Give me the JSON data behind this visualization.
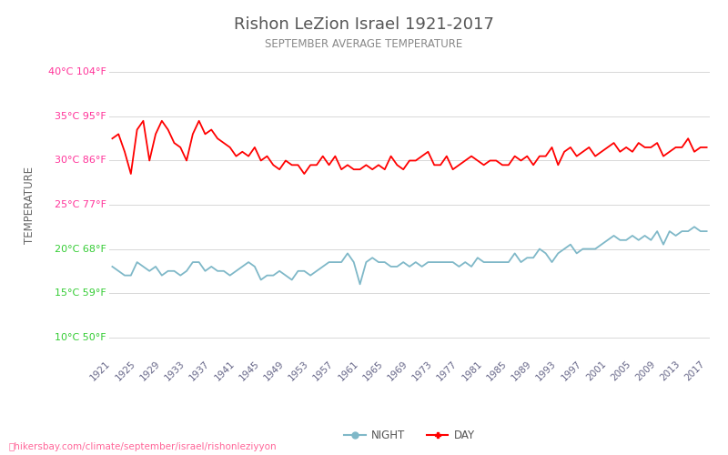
{
  "title": "Rishon LeZion Israel 1921-2017",
  "subtitle": "SEPTEMBER AVERAGE TEMPERATURE",
  "ylabel": "TEMPERATURE",
  "xlabel_url": "hikersbay.com/climate/september/israel/rishonleziyyon",
  "years": [
    1921,
    1922,
    1923,
    1924,
    1925,
    1926,
    1927,
    1928,
    1929,
    1930,
    1931,
    1932,
    1933,
    1934,
    1935,
    1936,
    1937,
    1938,
    1939,
    1940,
    1941,
    1942,
    1943,
    1944,
    1945,
    1946,
    1947,
    1948,
    1949,
    1950,
    1951,
    1952,
    1953,
    1954,
    1955,
    1956,
    1957,
    1958,
    1959,
    1960,
    1961,
    1962,
    1963,
    1964,
    1965,
    1966,
    1967,
    1968,
    1969,
    1970,
    1971,
    1972,
    1973,
    1974,
    1975,
    1976,
    1977,
    1978,
    1979,
    1980,
    1981,
    1982,
    1983,
    1984,
    1985,
    1986,
    1987,
    1988,
    1989,
    1990,
    1991,
    1992,
    1993,
    1994,
    1995,
    1996,
    1997,
    1998,
    1999,
    2000,
    2001,
    2002,
    2003,
    2004,
    2005,
    2006,
    2007,
    2008,
    2009,
    2010,
    2011,
    2012,
    2013,
    2014,
    2015,
    2016,
    2017
  ],
  "day_temps": [
    32.5,
    33.0,
    31.0,
    28.5,
    33.5,
    34.5,
    30.0,
    33.0,
    34.5,
    33.5,
    32.0,
    31.5,
    30.0,
    33.0,
    34.5,
    33.0,
    33.5,
    32.5,
    32.0,
    31.5,
    30.5,
    31.0,
    30.5,
    31.5,
    30.0,
    30.5,
    29.5,
    29.0,
    30.0,
    29.5,
    29.5,
    28.5,
    29.5,
    29.5,
    30.5,
    29.5,
    30.5,
    29.0,
    29.5,
    29.0,
    29.0,
    29.5,
    29.0,
    29.5,
    29.0,
    30.5,
    29.5,
    29.0,
    30.0,
    30.0,
    30.5,
    31.0,
    29.5,
    29.5,
    30.5,
    29.0,
    29.5,
    30.0,
    30.5,
    30.0,
    29.5,
    30.0,
    30.0,
    29.5,
    29.5,
    30.5,
    30.0,
    30.5,
    29.5,
    30.5,
    30.5,
    31.5,
    29.5,
    31.0,
    31.5,
    30.5,
    31.0,
    31.5,
    30.5,
    31.0,
    31.5,
    32.0,
    31.0,
    31.5,
    31.0,
    32.0,
    31.5,
    31.5,
    32.0,
    30.5,
    31.0,
    31.5,
    31.5,
    32.5,
    31.0,
    31.5,
    31.5
  ],
  "night_temps": [
    18.0,
    17.5,
    17.0,
    17.0,
    18.5,
    18.0,
    17.5,
    18.0,
    17.0,
    17.5,
    17.5,
    17.0,
    17.5,
    18.5,
    18.5,
    17.5,
    18.0,
    17.5,
    17.5,
    17.0,
    17.5,
    18.0,
    18.5,
    18.0,
    16.5,
    17.0,
    17.0,
    17.5,
    17.0,
    16.5,
    17.5,
    17.5,
    17.0,
    17.5,
    18.0,
    18.5,
    18.5,
    18.5,
    19.5,
    18.5,
    16.0,
    18.5,
    19.0,
    18.5,
    18.5,
    18.0,
    18.0,
    18.5,
    18.0,
    18.5,
    18.0,
    18.5,
    18.5,
    18.5,
    18.5,
    18.5,
    18.0,
    18.5,
    18.0,
    19.0,
    18.5,
    18.5,
    18.5,
    18.5,
    18.5,
    19.5,
    18.5,
    19.0,
    19.0,
    20.0,
    19.5,
    18.5,
    19.5,
    20.0,
    20.5,
    19.5,
    20.0,
    20.0,
    20.0,
    20.5,
    21.0,
    21.5,
    21.0,
    21.0,
    21.5,
    21.0,
    21.5,
    21.0,
    22.0,
    20.5,
    22.0,
    21.5,
    22.0,
    22.0,
    22.5,
    22.0,
    22.0
  ],
  "day_color": "#ff0000",
  "night_color": "#7fb8c8",
  "bg_color": "#ffffff",
  "grid_color": "#d8d8d8",
  "title_color": "#555555",
  "subtitle_color": "#888888",
  "ylabel_color": "#666666",
  "tick_label_color_warm": "#ff3399",
  "tick_label_color_cool": "#33cc33",
  "yticks_celsius": [
    10,
    15,
    20,
    25,
    30,
    35,
    40
  ],
  "yticks_fahrenheit": [
    50,
    59,
    68,
    77,
    86,
    95,
    104
  ],
  "ymin": 8,
  "ymax": 42,
  "xtick_years": [
    1921,
    1925,
    1929,
    1933,
    1937,
    1941,
    1945,
    1949,
    1953,
    1957,
    1961,
    1965,
    1969,
    1973,
    1977,
    1981,
    1985,
    1989,
    1993,
    1997,
    2001,
    2005,
    2009,
    2013,
    2017
  ]
}
